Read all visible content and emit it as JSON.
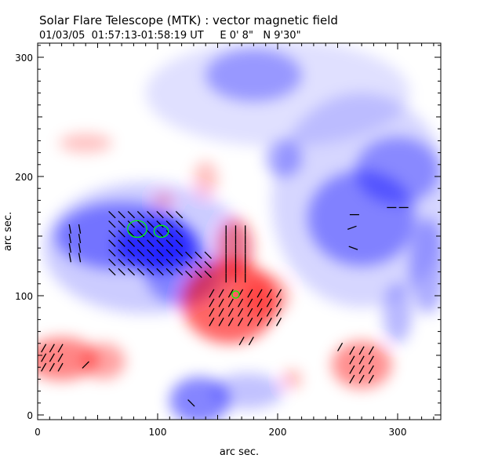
{
  "chart_data": {
    "type": "heatmap",
    "title": "Solar Flare Telescope (MTK) : vector magnetic field",
    "subtitle": "01/03/05  01:57:13-01:58:19 UT     E 0' 8\"   N 9'30\"",
    "xlabel": "arc sec.",
    "ylabel": "arc sec.",
    "xlim": [
      0,
      336
    ],
    "ylim": [
      0,
      312
    ],
    "xticks": [
      0,
      100,
      200,
      300
    ],
    "yticks": [
      0,
      100,
      200,
      300
    ],
    "xtick_labels": [
      "0",
      "100",
      "200",
      "300"
    ],
    "ytick_labels": [
      "0",
      "100",
      "200",
      "300"
    ],
    "colors": {
      "positive": "#ff0000",
      "negative": "#0000ff",
      "vector": "#000000",
      "contour": "#00ff00"
    },
    "field_regions": [
      {
        "polarity": "negative",
        "cx": 90,
        "cy": 140,
        "rx": 85,
        "ry": 55,
        "strength": 0.25
      },
      {
        "polarity": "negative",
        "cx": 270,
        "cy": 180,
        "rx": 75,
        "ry": 90,
        "strength": 0.2
      },
      {
        "polarity": "negative",
        "cx": 200,
        "cy": 270,
        "rx": 110,
        "ry": 45,
        "strength": 0.15
      },
      {
        "polarity": "negative",
        "cx": 70,
        "cy": 150,
        "rx": 55,
        "ry": 28,
        "strength": 0.55
      },
      {
        "polarity": "negative",
        "cx": 100,
        "cy": 142,
        "rx": 35,
        "ry": 22,
        "strength": 0.8
      },
      {
        "polarity": "negative",
        "cx": 120,
        "cy": 118,
        "rx": 30,
        "ry": 25,
        "strength": 0.45
      },
      {
        "polarity": "negative",
        "cx": 270,
        "cy": 165,
        "rx": 45,
        "ry": 40,
        "strength": 0.5
      },
      {
        "polarity": "negative",
        "cx": 300,
        "cy": 205,
        "rx": 35,
        "ry": 28,
        "strength": 0.45
      },
      {
        "polarity": "negative",
        "cx": 325,
        "cy": 125,
        "rx": 15,
        "ry": 40,
        "strength": 0.4
      },
      {
        "polarity": "negative",
        "cx": 180,
        "cy": 285,
        "rx": 40,
        "ry": 22,
        "strength": 0.4
      },
      {
        "polarity": "negative",
        "cx": 205,
        "cy": 215,
        "rx": 15,
        "ry": 15,
        "strength": 0.4
      },
      {
        "polarity": "negative",
        "cx": 300,
        "cy": 85,
        "rx": 12,
        "ry": 25,
        "strength": 0.35
      },
      {
        "polarity": "negative",
        "cx": 135,
        "cy": 12,
        "rx": 25,
        "ry": 20,
        "strength": 0.6
      },
      {
        "polarity": "negative",
        "cx": 175,
        "cy": 20,
        "rx": 30,
        "ry": 15,
        "strength": 0.3
      },
      {
        "polarity": "positive",
        "cx": 160,
        "cy": 95,
        "rx": 40,
        "ry": 35,
        "strength": 0.75
      },
      {
        "polarity": "positive",
        "cx": 165,
        "cy": 140,
        "rx": 15,
        "ry": 25,
        "strength": 0.55
      },
      {
        "polarity": "positive",
        "cx": 190,
        "cy": 100,
        "rx": 20,
        "ry": 18,
        "strength": 0.4
      },
      {
        "polarity": "positive",
        "cx": 20,
        "cy": 47,
        "rx": 30,
        "ry": 18,
        "strength": 0.6
      },
      {
        "polarity": "positive",
        "cx": 55,
        "cy": 45,
        "rx": 18,
        "ry": 15,
        "strength": 0.45
      },
      {
        "polarity": "positive",
        "cx": 270,
        "cy": 42,
        "rx": 25,
        "ry": 20,
        "strength": 0.55
      },
      {
        "polarity": "positive",
        "cx": 40,
        "cy": 228,
        "rx": 22,
        "ry": 8,
        "strength": 0.3
      },
      {
        "polarity": "positive",
        "cx": 140,
        "cy": 198,
        "rx": 10,
        "ry": 15,
        "strength": 0.3
      },
      {
        "polarity": "positive",
        "cx": 212,
        "cy": 30,
        "rx": 8,
        "ry": 8,
        "strength": 0.35
      },
      {
        "polarity": "positive",
        "cx": 105,
        "cy": 180,
        "rx": 8,
        "ry": 6,
        "strength": 0.35
      }
    ],
    "vector_groups": [
      {
        "x": [
          27,
          37,
          8
        ],
        "y": [
          132,
          156,
          8
        ],
        "angle": 100
      },
      {
        "x": [
          62,
          118,
          8
        ],
        "y": [
          120,
          168,
          8
        ],
        "angle": 135
      },
      {
        "x": [
          126,
          146,
          8
        ],
        "y": [
          118,
          134,
          8
        ],
        "angle": 135
      },
      {
        "x": [
          157,
          173,
          8
        ],
        "y": [
          115,
          155,
          8
        ],
        "angle": 90
      },
      {
        "x": [
          145,
          201,
          8
        ],
        "y": [
          78,
          108,
          8
        ],
        "angle": 60
      },
      {
        "x": [
          5,
          25,
          7
        ],
        "y": [
          40,
          60,
          8
        ],
        "angle": 60
      },
      {
        "x": [
          262,
          278,
          8
        ],
        "y": [
          30,
          54,
          8
        ],
        "angle": 60
      }
    ],
    "vectors": [
      [
        262,
        157,
        20
      ],
      [
        264,
        168,
        0
      ],
      [
        295,
        174,
        0
      ],
      [
        305,
        174,
        0
      ],
      [
        263,
        140,
        -20
      ],
      [
        170,
        62,
        60
      ],
      [
        178,
        62,
        60
      ],
      [
        128,
        10,
        135
      ],
      [
        40,
        42,
        45
      ],
      [
        252,
        57,
        60
      ]
    ],
    "contours": [
      {
        "cx": 83,
        "cy": 156,
        "rx": 8,
        "ry": 7
      },
      {
        "cx": 103,
        "cy": 154,
        "rx": 6,
        "ry": 5
      },
      {
        "cx": 165,
        "cy": 101,
        "rx": 3,
        "ry": 3
      }
    ]
  }
}
